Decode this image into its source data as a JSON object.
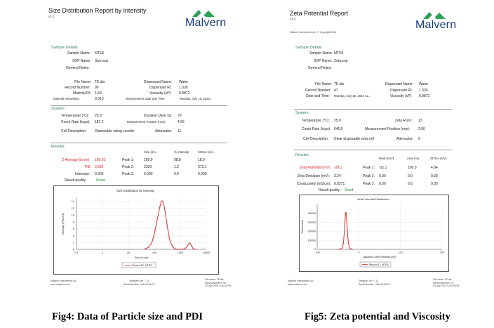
{
  "size_report": {
    "title": "Size Distribution Report by Intensity",
    "version": "v2.2",
    "logo_text": "Malvern",
    "sample_details": {
      "section_label": "Sample Details",
      "rows": [
        {
          "label": "Sample Name:",
          "value": "MTE5"
        },
        {
          "label": "SOP Name:",
          "value": "Size.sop"
        },
        {
          "label": "General Notes:",
          "value": ""
        }
      ],
      "left_pairs": [
        {
          "label": "File Name:",
          "value": "TE.dts"
        },
        {
          "label": "Record Number:",
          "value": "90"
        },
        {
          "label": "Material RI:",
          "value": "1.59"
        },
        {
          "label": "Material Absorbtion:",
          "value": "0.010"
        }
      ],
      "right_pairs": [
        {
          "label": "Dispersant Name:",
          "value": "Water"
        },
        {
          "label": "Dispersant RI:",
          "value": "1.330"
        },
        {
          "label": "Viscosity (cP):",
          "value": "0.8872"
        },
        {
          "label": "Measurement Date and Time:",
          "value": "Monday, July 15, 2024..."
        }
      ]
    },
    "system": {
      "section_label": "System",
      "rows": [
        {
          "l_label": "Temperature (°C):",
          "l_value": "25.0",
          "r_label": "Duration Used (s):",
          "r_value": "70"
        },
        {
          "l_label": "Count Rate (kcps):",
          "l_value": "187.2",
          "r_label": "Measurement Position (mm):",
          "r_value": "4.65"
        },
        {
          "l_label": "Cell Description:",
          "l_value": "Disposable sizing cuvette",
          "r_label": "Attenuator:",
          "r_value": "11"
        }
      ]
    },
    "results": {
      "section_label": "Results",
      "headers": [
        "Size (d.n...",
        "% Intensity:",
        "St Dev (d.n..."
      ],
      "rows": [
        {
          "label": "Z-Average (d.nm):",
          "value": "166.63",
          "peak": "Peak 1:",
          "c1": "199.9",
          "c2": "98.8",
          "c3": "18.9"
        },
        {
          "label": "PdI:",
          "value": "0.392",
          "peak": "Peak 2:",
          "c1": "2329",
          "c2": "1.2",
          "c3": "373.1"
        },
        {
          "label": "Intercept:",
          "value": "0.939",
          "peak": "Peak 3:",
          "c1": "0.000",
          "c2": "0.0",
          "c3": "0.000"
        }
      ],
      "quality_label": "Result quality",
      "quality_value": "Good"
    },
    "chart": {
      "title": "Size Distribution by Intensity",
      "legend": "Record 90: MTE5"
    },
    "footer": {
      "left": [
        "Malvern Instruments Ltd",
        "www.malvern.com"
      ],
      "center": [
        "Zetasizer Ver. 7.11",
        "Serial Number : MAL1015474"
      ],
      "right": [
        "File name: TE.dts",
        "Record Number: 90",
        "15 July 2024 5:16:20 PM"
      ]
    }
  },
  "zeta_report": {
    "title": "Zeta Potential Report",
    "version": "v2.3",
    "copyright": "Malvern Instruments Ltd - © Copyright 2008",
    "logo_text": "Malvern",
    "sample_details": {
      "section_label": "Sample Details",
      "rows": [
        {
          "label": "Sample Name:",
          "value": "MTE5"
        },
        {
          "label": "SOP Name:",
          "value": "Zeta.sop"
        },
        {
          "label": "General Notes:",
          "value": ""
        }
      ],
      "left_pairs": [
        {
          "label": "File Name:",
          "value": "TE.dts"
        },
        {
          "label": "Record Number:",
          "value": "47"
        },
        {
          "label": "Date and Time:",
          "value": "Monday, July 15, 2024 12..."
        }
      ],
      "right_pairs": [
        {
          "label": "Dispersant Name:",
          "value": "Water"
        },
        {
          "label": "Dispersant RI:",
          "value": "1.330"
        },
        {
          "label": "Viscosity (cP):",
          "value": "0.8872"
        }
      ]
    },
    "system": {
      "section_label": "System",
      "rows": [
        {
          "l_label": "Temperature (°C):",
          "l_value": "25.0",
          "r_label": "Zeta Runs:",
          "r_value": "13"
        },
        {
          "l_label": "Count Rate (kcps):",
          "l_value": "645.0",
          "r_label": "Measurement Position (mm):",
          "r_value": "2.00"
        },
        {
          "l_label": "Cell Description:",
          "l_value": "Clear disposable zeta cell",
          "r_label": "Attenuator:",
          "r_value": "9"
        }
      ]
    },
    "results": {
      "section_label": "Results",
      "headers": [
        "Mean (mV)",
        "Area (%)",
        "St Dev (mV)"
      ],
      "rows": [
        {
          "label": "Zeta Potential (mV):",
          "value": "-28.1",
          "peak": "Peak 1:",
          "c1": "-31.1",
          "c2": "100.0",
          "c3": "4.84"
        },
        {
          "label": "Zeta Deviation (mV):",
          "value": "3.24",
          "peak": "Peak 2:",
          "c1": "0.00",
          "c2": "0.0",
          "c3": "0.00"
        },
        {
          "label": "Conductivity (mS/cm):",
          "value": "0.0271",
          "peak": "Peak 3:",
          "c1": "0.00",
          "c2": "0.0",
          "c3": "0.00"
        }
      ],
      "quality_label": "Result quality :",
      "quality_value": "Good"
    },
    "chart": {
      "title": "Zeta Potential Distribution",
      "legend": "Record 47: MTE5"
    },
    "footer": {
      "left": [
        "Malvern Instruments Ltd",
        "www.malvern.com"
      ],
      "center": [
        "Zetasizer Ver. 7.11",
        "Serial Number : MAL1015474"
      ],
      "right": [
        "File name: TE.dts",
        "Record Number: 47",
        "15 July 2024 5:19:28 PM"
      ]
    }
  },
  "captions": {
    "left": "Fig4: Data of Particle size and PDI",
    "right": "Fig5: Zeta potential and Viscosity"
  },
  "chart_data": [
    {
      "type": "line",
      "title": "Size Distribution by Intensity",
      "xlabel": "Size (d.nm)",
      "ylabel": "Intensity (Percent)",
      "x_scale": "log",
      "xlim": [
        0.1,
        10000
      ],
      "ylim": [
        0,
        15
      ],
      "x_ticks": [
        "0.1",
        "1",
        "10",
        "100",
        "1000",
        "10000"
      ],
      "y_ticks": [
        0,
        2,
        4,
        6,
        8,
        10,
        12,
        14
      ],
      "series": [
        {
          "name": "Record 90: MTE5",
          "color": "#d62a2a",
          "x": [
            40,
            60,
            80,
            100,
            120,
            140,
            160,
            180,
            200,
            220,
            240,
            260,
            280,
            300,
            350,
            400,
            500,
            600,
            700,
            1000,
            1500,
            1800,
            2000,
            2300,
            2600,
            3000,
            3500,
            4000
          ],
          "y": [
            0,
            0.6,
            2,
            4.5,
            7.5,
            10,
            12.3,
            13.7,
            14.2,
            13.6,
            12.5,
            11,
            9.4,
            7.8,
            4.6,
            2.5,
            0.8,
            0.2,
            0,
            0,
            0.15,
            0.8,
            1.4,
            1.9,
            1.3,
            0.4,
            0.05,
            0
          ]
        }
      ]
    },
    {
      "type": "line",
      "title": "Zeta Potential Distribution",
      "xlabel": "Apparent Zeta Potential (mV)",
      "ylabel": "Total Counts",
      "xlim": [
        -100,
        200
      ],
      "ylim": [
        0,
        500000
      ],
      "x_ticks": [
        -100,
        0,
        100,
        200
      ],
      "y_ticks": [
        0,
        100000,
        200000,
        300000,
        400000
      ],
      "series": [
        {
          "name": "Record 47: MTE5",
          "color": "#d62a2a",
          "x": [
            -50,
            -44,
            -40,
            -37,
            -35,
            -33,
            -32,
            -31,
            -30,
            -29,
            -27,
            -25,
            -22,
            -18,
            -14
          ],
          "y": [
            0,
            3000,
            15000,
            70000,
            180000,
            330000,
            400000,
            415000,
            390000,
            320000,
            170000,
            70000,
            15000,
            2000,
            0
          ]
        }
      ]
    }
  ]
}
